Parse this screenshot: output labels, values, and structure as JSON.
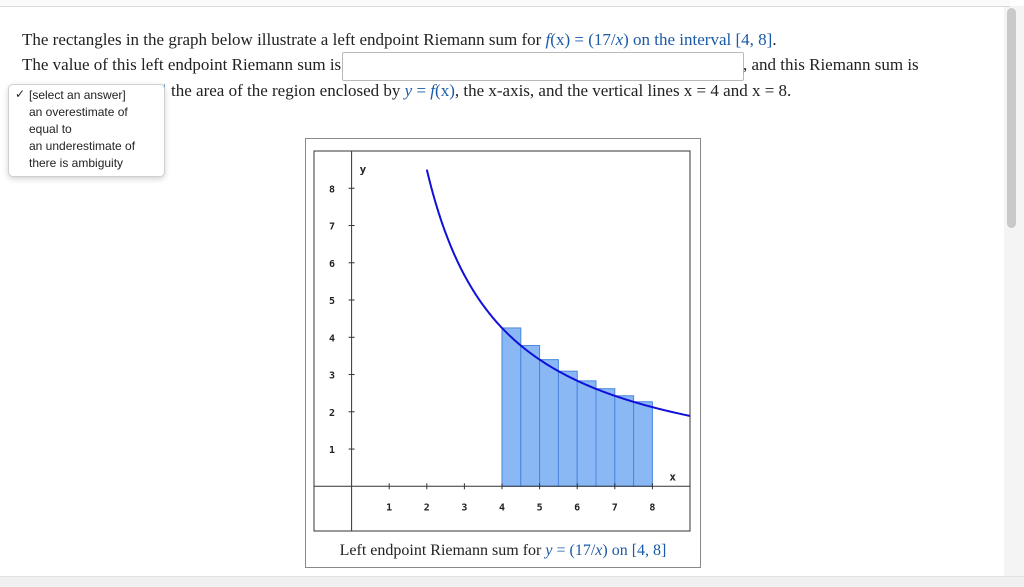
{
  "problem": {
    "line1_a": "The rectangles in the graph below illustrate a left endpoint Riemann sum for ",
    "line1_fx": "f",
    "line1_eq": "(x) = (17/",
    "line1_x": "x",
    "line1_close": ") on the interval ",
    "line1_interval": "[4, 8]",
    "line1_end": ".",
    "line2_a": "The value of this left endpoint Riemann sum is",
    "line2_b": ", and this Riemann sum is",
    "line3_a": "the area of the region enclosed by ",
    "line3_y": "y",
    "line3_eq": " = ",
    "line3_f": "f",
    "line3_x": "(x)",
    "line3_rest": ", the x-axis, and the vertical lines x = 4 and x = 8.",
    "answer_value": ""
  },
  "dropdown": {
    "check": "✓",
    "options": [
      "[select an answer]",
      "an overestimate of",
      "equal to",
      "an underestimate of",
      "there is ambiguity"
    ],
    "selected": "[select an answer]"
  },
  "graph": {
    "caption_a": "Left endpoint Riemann sum for ",
    "caption_y": "y",
    "caption_eq": " = (17/",
    "caption_x": "x",
    "caption_close": ") on ",
    "caption_interval": "[4, 8]",
    "y_axis_label": "y",
    "x_axis_label": "x",
    "x_ticks": [
      "1",
      "2",
      "3",
      "4",
      "5",
      "6",
      "7",
      "8"
    ],
    "y_ticks": [
      "8",
      "7",
      "6",
      "5",
      "4",
      "3",
      "2",
      "1"
    ],
    "curve_color": "#1010d8",
    "rect_fill": "#8ab8f5",
    "rect_stroke": "#4a86e0"
  },
  "chart_data": {
    "type": "area",
    "function": "17/x",
    "interval": [
      4,
      8
    ],
    "rectangles": [
      {
        "x_left": 4.0,
        "height": 4.25
      },
      {
        "x_left": 4.5,
        "height": 3.78
      },
      {
        "x_left": 5.0,
        "height": 3.4
      },
      {
        "x_left": 5.5,
        "height": 3.09
      },
      {
        "x_left": 6.0,
        "height": 2.83
      },
      {
        "x_left": 6.5,
        "height": 2.62
      },
      {
        "x_left": 7.0,
        "height": 2.43
      },
      {
        "x_left": 7.5,
        "height": 2.27
      }
    ],
    "rect_width": 0.5,
    "xlim": [
      -1,
      9
    ],
    "ylim": [
      -1.2,
      9
    ]
  }
}
